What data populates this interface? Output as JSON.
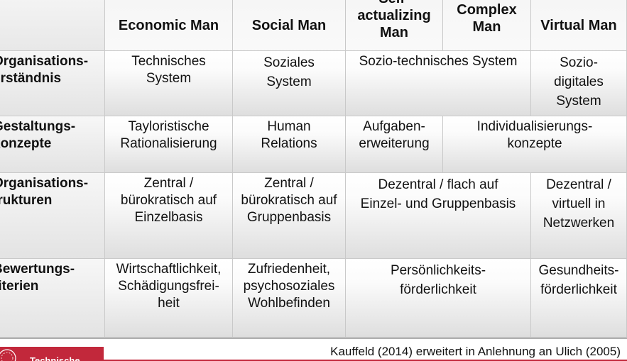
{
  "table": {
    "columns": [
      "Economic Man",
      "Social Man",
      "Self-actualizing Man",
      "Complex Man",
      "Virtual Man"
    ],
    "column_header_lines": {
      "self_actualizing": [
        "Self-",
        "actualizing",
        "Man"
      ],
      "complex": [
        "Complex",
        "Man"
      ]
    },
    "rows": [
      {
        "label": [
          "Organisations-",
          "erständnis"
        ],
        "cells": {
          "economic": [
            "Technisches",
            "System"
          ],
          "social": [
            "Soziales",
            "System"
          ],
          "self_complex": "Sozio-technisches System",
          "virtual": [
            "Sozio-",
            "digitales",
            "System"
          ]
        }
      },
      {
        "label": [
          "Gestaltungs-",
          "konzepte"
        ],
        "cells": {
          "economic": [
            "Tayloristische",
            "Rationalisierung"
          ],
          "social": [
            "Human",
            "Relations"
          ],
          "self": [
            "Aufgaben-",
            "erweiterung"
          ],
          "complex_virtual": [
            "Individualisierungs-",
            "konzepte"
          ]
        }
      },
      {
        "label": [
          "Organisations-",
          "trukturen"
        ],
        "cells": {
          "economic": [
            "Zentral /",
            "bürokratisch auf",
            "Einzelbasis"
          ],
          "social": [
            "Zentral /",
            "bürokratisch auf",
            "Gruppenbasis"
          ],
          "self_complex": [
            "Dezentral / flach auf",
            "Einzel- und Gruppenbasis"
          ],
          "virtual": [
            "Dezentral /",
            "virtuell in",
            "Netzwerken"
          ]
        }
      },
      {
        "label": [
          "Bewertungs-",
          "riterien"
        ],
        "cells": {
          "economic": [
            "Wirtschaftlichkeit,",
            "Schädigungsfrei-",
            "heit"
          ],
          "social": [
            "Zufriedenheit,",
            "psychosoziales",
            "Wohlbefinden"
          ],
          "self_complex": [
            "Persönlichkeits-",
            "förderlichkeit"
          ],
          "virtual": [
            "Gesundheits-",
            "förderlichkeit"
          ]
        }
      }
    ]
  },
  "footer": {
    "citation": "Kauffeld (2014) erweitert in Anlehnung an Ulich (2005)",
    "logo_text": "Technische",
    "logo_color": "#c2283b"
  }
}
